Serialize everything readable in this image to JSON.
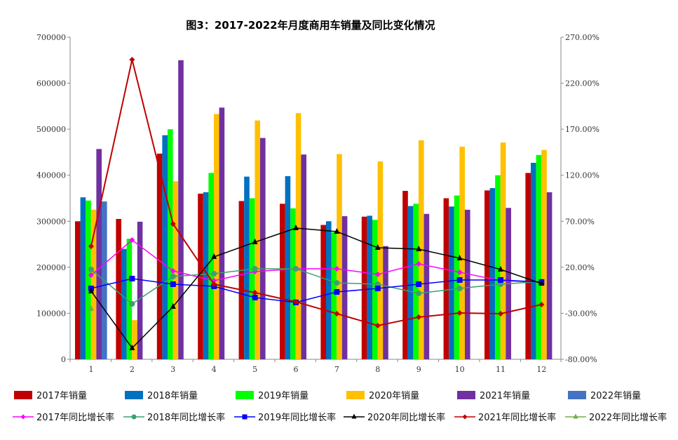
{
  "chart_data": {
    "type": "bar+line",
    "title": "图3：2017-2022年月度商用车销量及同比变化情况",
    "categories": [
      "1",
      "2",
      "3",
      "4",
      "5",
      "6",
      "7",
      "8",
      "9",
      "10",
      "11",
      "12"
    ],
    "left_axis": {
      "ylim": [
        0,
        700000
      ],
      "ticks": [
        "0",
        "100000",
        "200000",
        "300000",
        "400000",
        "500000",
        "600000",
        "700000"
      ]
    },
    "right_axis": {
      "ylim": [
        -80,
        270
      ],
      "unit": "%",
      "ticks": [
        "-80.00%",
        "-30.00%",
        "20.00%",
        "70.00%",
        "120.00%",
        "170.00%",
        "220.00%",
        "270.00%"
      ]
    },
    "grid": false,
    "legend_placement": "bottom",
    "bar_series": [
      {
        "name": "2017年销量",
        "color": "#C00000",
        "values": [
          300000,
          305000,
          447000,
          360000,
          344000,
          338000,
          292000,
          310000,
          366000,
          350000,
          367000,
          405000
        ]
      },
      {
        "name": "2018年销量",
        "color": "#0070C0",
        "values": [
          352000,
          240000,
          487000,
          363000,
          397000,
          398000,
          300000,
          312000,
          333000,
          332000,
          372000,
          427000
        ]
      },
      {
        "name": "2019年销量",
        "color": "#00FF00",
        "values": [
          345000,
          262000,
          500000,
          405000,
          350000,
          328000,
          276000,
          303000,
          338000,
          356000,
          400000,
          444000
        ]
      },
      {
        "name": "2020年销量",
        "color": "#FFC000",
        "values": [
          325000,
          85000,
          387000,
          533000,
          519000,
          535000,
          446000,
          430000,
          476000,
          462000,
          471000,
          455000
        ]
      },
      {
        "name": "2021年销量",
        "color": "#7030A0",
        "values": [
          457000,
          299000,
          650000,
          547000,
          481000,
          445000,
          311000,
          246000,
          316000,
          325000,
          329000,
          363000
        ]
      },
      {
        "name": "2022年销量",
        "color": "#4472C4",
        "values": [
          343000,
          null,
          null,
          null,
          null,
          null,
          null,
          null,
          null,
          null,
          null,
          null
        ]
      }
    ],
    "line_series": [
      {
        "name": "2017年同比增长率",
        "color": "#FF00FF",
        "marker": "diamond",
        "values": [
          11.5,
          49.6,
          16,
          5.4,
          15.3,
          18.4,
          18.4,
          12.3,
          23.7,
          14.6,
          5.4,
          3.9
        ]
      },
      {
        "name": "2018年同比增长率",
        "color": "#3CA070",
        "marker": "circle",
        "values": [
          17.6,
          -19.8,
          10,
          13,
          18.4,
          18.4,
          3,
          1.6,
          -8.3,
          -3,
          1.6,
          4.6
        ]
      },
      {
        "name": "2019年同比增长率",
        "color": "#0000FF",
        "marker": "square",
        "values": [
          -3,
          7.7,
          1.6,
          -0.7,
          -12.9,
          -18.2,
          -6.8,
          -3,
          1.6,
          6.2,
          6.2,
          3.9
        ]
      },
      {
        "name": "2020年同比增长率",
        "color": "#000000",
        "marker": "triangle",
        "values": [
          -6,
          -67.8,
          -22.8,
          31.3,
          47.3,
          62.6,
          58.8,
          41.2,
          39.7,
          29.8,
          17.6,
          2.3
        ]
      },
      {
        "name": "2021年同比增长率",
        "color": "#C00000",
        "marker": "diamond",
        "values": [
          42.8,
          245.6,
          67.2,
          1.6,
          -7.6,
          -17.5,
          -30.4,
          -43.4,
          -34.2,
          -29.7,
          -30.4,
          -20.5
        ]
      },
      {
        "name": "2022年同比增长率",
        "color": "#70AD47",
        "marker": "triangle",
        "values": [
          -25,
          null,
          null,
          null,
          null,
          null,
          null,
          null,
          null,
          null,
          null,
          null
        ]
      }
    ]
  }
}
